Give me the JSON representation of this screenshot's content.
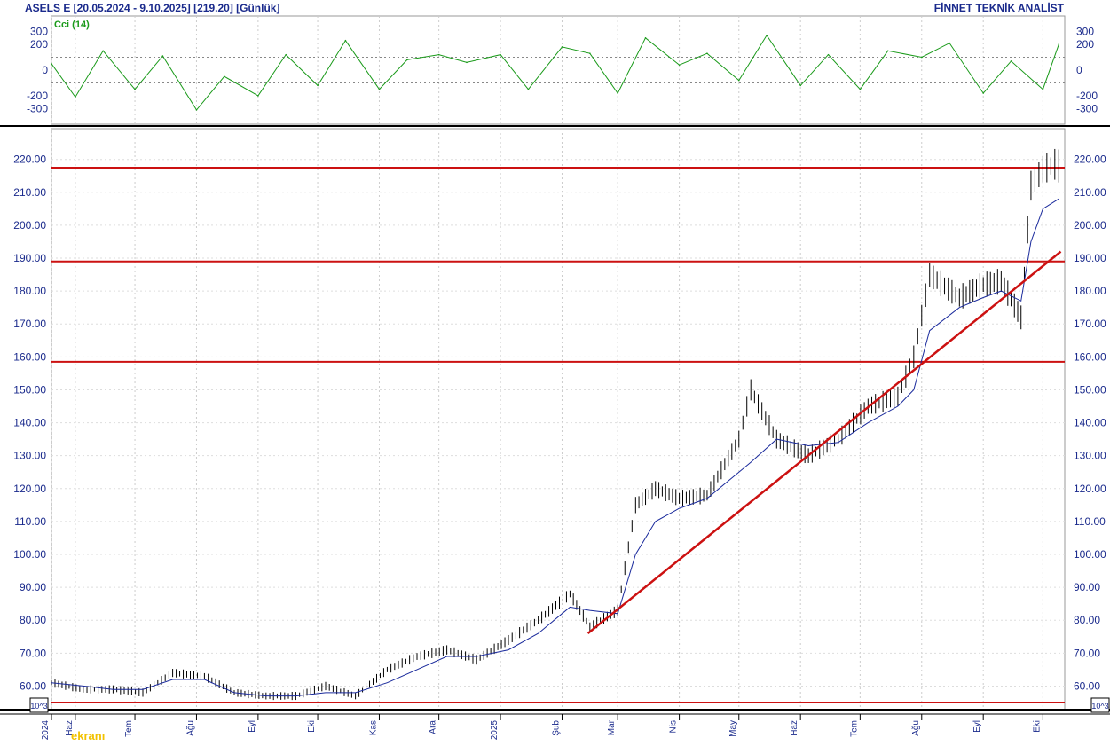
{
  "header": {
    "title": "ASELS E  [20.05.2024 - 9.10.2025]  [219.20]  [Günlük]",
    "brand": "FİNNET TEKNİK ANALİST"
  },
  "cci_label": "Cci (14)",
  "scale_label": "10^3",
  "watermark": "ekranı",
  "colors": {
    "price": "#000000",
    "moving_average": "#1a2a9c",
    "cci": "#1a9a1a",
    "levels": "#cc1111",
    "axis_text": "#1a2a8c"
  },
  "chart_data": [
    {
      "type": "line",
      "name": "cci",
      "ylim": [
        -380,
        380
      ],
      "yticks": [
        300,
        200,
        0,
        -200,
        -300
      ],
      "reference_lines": [
        100,
        -100
      ],
      "x": [
        "2024-05-20",
        "2024-06-01",
        "2024-06-15",
        "2024-07-01",
        "2024-07-15",
        "2024-08-01",
        "2024-08-15",
        "2024-09-01",
        "2024-09-15",
        "2024-10-01",
        "2024-10-15",
        "2024-11-01",
        "2024-11-15",
        "2024-12-01",
        "2024-12-15",
        "2025-01-01",
        "2025-01-15",
        "2025-02-01",
        "2025-02-15",
        "2025-03-01",
        "2025-03-15",
        "2025-04-01",
        "2025-04-15",
        "2025-05-01",
        "2025-05-15",
        "2025-06-01",
        "2025-06-15",
        "2025-07-01",
        "2025-07-15",
        "2025-08-01",
        "2025-08-15",
        "2025-09-01",
        "2025-09-15",
        "2025-10-01",
        "2025-10-09"
      ],
      "values": [
        50,
        -210,
        150,
        -150,
        110,
        -310,
        -50,
        -200,
        120,
        -120,
        230,
        -150,
        80,
        120,
        60,
        120,
        -150,
        180,
        130,
        -180,
        250,
        40,
        130,
        -80,
        270,
        -120,
        120,
        -150,
        150,
        100,
        210,
        -180,
        70,
        -150,
        200
      ]
    },
    {
      "type": "line",
      "name": "price",
      "ylim": [
        55,
        228
      ],
      "yticks": [
        220,
        210,
        200,
        190,
        180,
        170,
        160,
        150,
        140,
        130,
        120,
        110,
        100,
        90,
        80,
        70,
        60
      ],
      "ytick_labels": [
        "220.00",
        "210.00",
        "200.00",
        "190.00",
        "180.00",
        "170.00",
        "160.00",
        "150.00",
        "140.00",
        "130.00",
        "120.00",
        "110.00",
        "100.00",
        "90.00",
        "80.00",
        "70.00",
        "60.00"
      ],
      "horizontal_levels": [
        217.5,
        189,
        158.5,
        55
      ],
      "trendline": {
        "x": [
          "2025-02-14",
          "2025-10-10"
        ],
        "y": [
          76,
          192
        ]
      },
      "x": [
        "2024-05-20",
        "2024-06-05",
        "2024-06-20",
        "2024-07-05",
        "2024-07-20",
        "2024-08-05",
        "2024-08-20",
        "2024-09-05",
        "2024-09-20",
        "2024-10-05",
        "2024-10-20",
        "2024-11-05",
        "2024-11-20",
        "2024-12-05",
        "2024-12-20",
        "2025-01-05",
        "2025-01-20",
        "2025-02-05",
        "2025-02-15",
        "2025-03-01",
        "2025-03-10",
        "2025-03-20",
        "2025-04-01",
        "2025-04-15",
        "2025-05-01",
        "2025-05-07",
        "2025-05-20",
        "2025-06-05",
        "2025-06-20",
        "2025-07-05",
        "2025-07-20",
        "2025-07-28",
        "2025-08-05",
        "2025-08-20",
        "2025-09-01",
        "2025-09-10",
        "2025-09-20",
        "2025-09-25",
        "2025-10-01",
        "2025-10-09"
      ],
      "values": [
        61,
        59,
        59,
        58,
        64,
        63,
        58,
        57,
        57,
        60,
        57,
        65,
        69,
        71,
        68,
        74,
        80,
        88,
        78,
        83,
        115,
        120,
        117,
        118,
        135,
        150,
        135,
        130,
        135,
        145,
        148,
        160,
        185,
        178,
        182,
        183,
        172,
        212,
        217,
        219
      ],
      "ma_values": [
        61,
        60,
        59,
        59,
        62,
        62,
        58,
        57,
        57,
        58,
        58,
        61,
        65,
        69,
        69,
        71,
        76,
        84,
        83,
        82,
        100,
        110,
        114,
        117,
        125,
        128,
        135,
        133,
        134,
        140,
        145,
        150,
        168,
        175,
        178,
        180,
        177,
        195,
        205,
        208
      ]
    }
  ],
  "x_axis": {
    "labels": [
      {
        "date": "2024-05-20",
        "text": "2024"
      },
      {
        "date": "2024-06-01",
        "text": "Haz"
      },
      {
        "date": "2024-07-01",
        "text": "Tem"
      },
      {
        "date": "2024-08-01",
        "text": "Ağu"
      },
      {
        "date": "2024-09-01",
        "text": "Eyl"
      },
      {
        "date": "2024-10-01",
        "text": "Eki"
      },
      {
        "date": "2024-11-01",
        "text": "Kas"
      },
      {
        "date": "2024-12-01",
        "text": "Ara"
      },
      {
        "date": "2025-01-01",
        "text": "2025"
      },
      {
        "date": "2025-02-01",
        "text": "Şub"
      },
      {
        "date": "2025-03-01",
        "text": "Mar"
      },
      {
        "date": "2025-04-01",
        "text": "Nis"
      },
      {
        "date": "2025-05-01",
        "text": "May"
      },
      {
        "date": "2025-06-01",
        "text": "Haz"
      },
      {
        "date": "2025-07-01",
        "text": "Tem"
      },
      {
        "date": "2025-08-01",
        "text": "Ağu"
      },
      {
        "date": "2025-09-01",
        "text": "Eyl"
      },
      {
        "date": "2025-10-01",
        "text": "Eki"
      }
    ]
  }
}
